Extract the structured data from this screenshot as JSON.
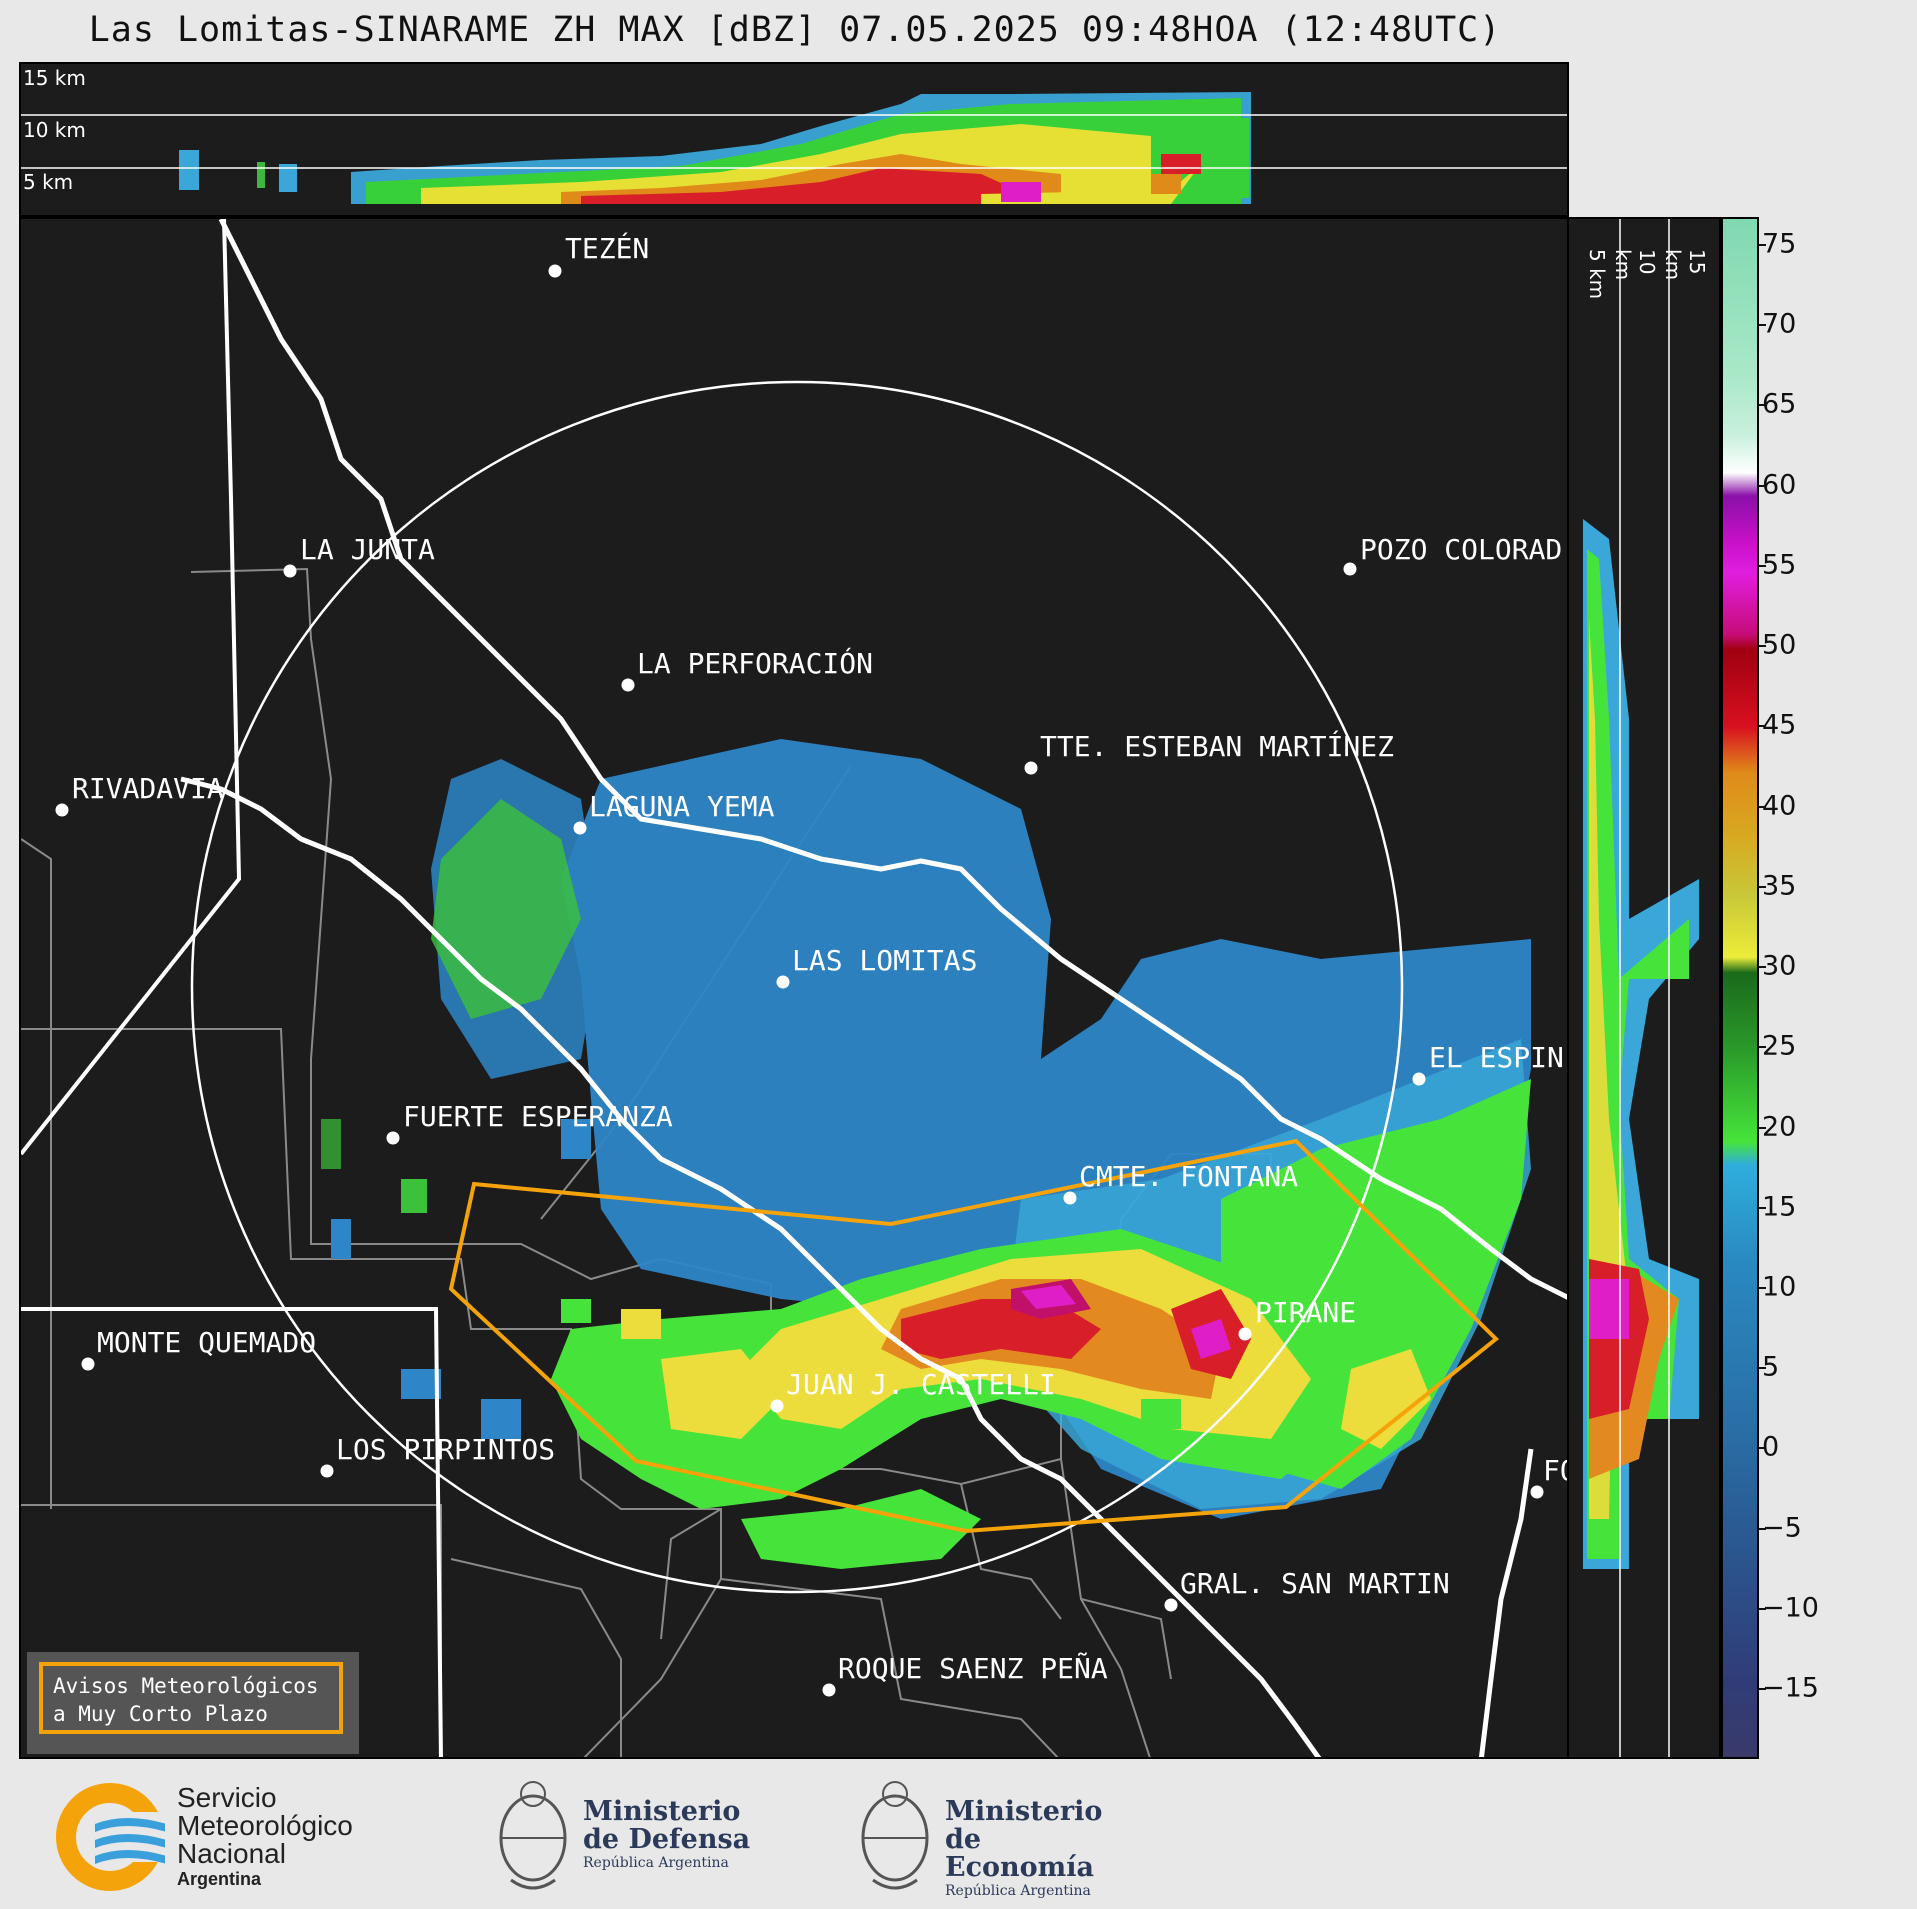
{
  "title": "Las Lomitas-SINARAME ZH MAX [dBZ] 07.05.2025 09:48HOA (12:48UTC)",
  "top_panel": {
    "labels": [
      "15 km",
      "10 km",
      "5 km"
    ]
  },
  "side_panel": {
    "labels": [
      "5 km",
      "10 km",
      "15 km"
    ]
  },
  "colorbar": {
    "unit": "dBZ",
    "ticks": [
      "75",
      "70",
      "65",
      "60",
      "55",
      "50",
      "45",
      "40",
      "35",
      "30",
      "25",
      "20",
      "15",
      "10",
      "5",
      "0",
      "−5",
      "−10",
      "−15"
    ],
    "range": [
      -20,
      77
    ]
  },
  "cities": [
    {
      "name": "TEZÉN"
    },
    {
      "name": "LA JUNTA"
    },
    {
      "name": "POZO COLORAD"
    },
    {
      "name": "LA PERFORACIÓN"
    },
    {
      "name": "TTE. ESTEBAN MARTÍNEZ"
    },
    {
      "name": "RIVADAVIA"
    },
    {
      "name": "LAGUNA YEMA"
    },
    {
      "name": "LAS LOMITAS"
    },
    {
      "name": "EL ESPIN"
    },
    {
      "name": "FUERTE ESPERANZA"
    },
    {
      "name": "CMTE. FONTANA"
    },
    {
      "name": "PIRANE"
    },
    {
      "name": "MONTE QUEMADO"
    },
    {
      "name": "JUAN J. CASTELLI"
    },
    {
      "name": "LOS PIRPINTOS"
    },
    {
      "name": "GRAL. SAN MARTIN"
    },
    {
      "name": "ROQUE SAENZ PEÑA"
    },
    {
      "name": "FO"
    }
  ],
  "aviso": {
    "line1": "Avisos Meteorológicos",
    "line2": "a Muy Corto Plazo",
    "color": "#f5a30a"
  },
  "logos": {
    "smn": {
      "line1": "Servicio",
      "line2": "Meteorológico",
      "line3": "Nacional",
      "line4": "Argentina"
    },
    "defensa": {
      "line1": "Ministerio",
      "line2": "de Defensa",
      "line3": "República Argentina"
    },
    "economia": {
      "line1": "Ministerio",
      "line2": "de Economía",
      "line3": "República Argentina"
    }
  }
}
